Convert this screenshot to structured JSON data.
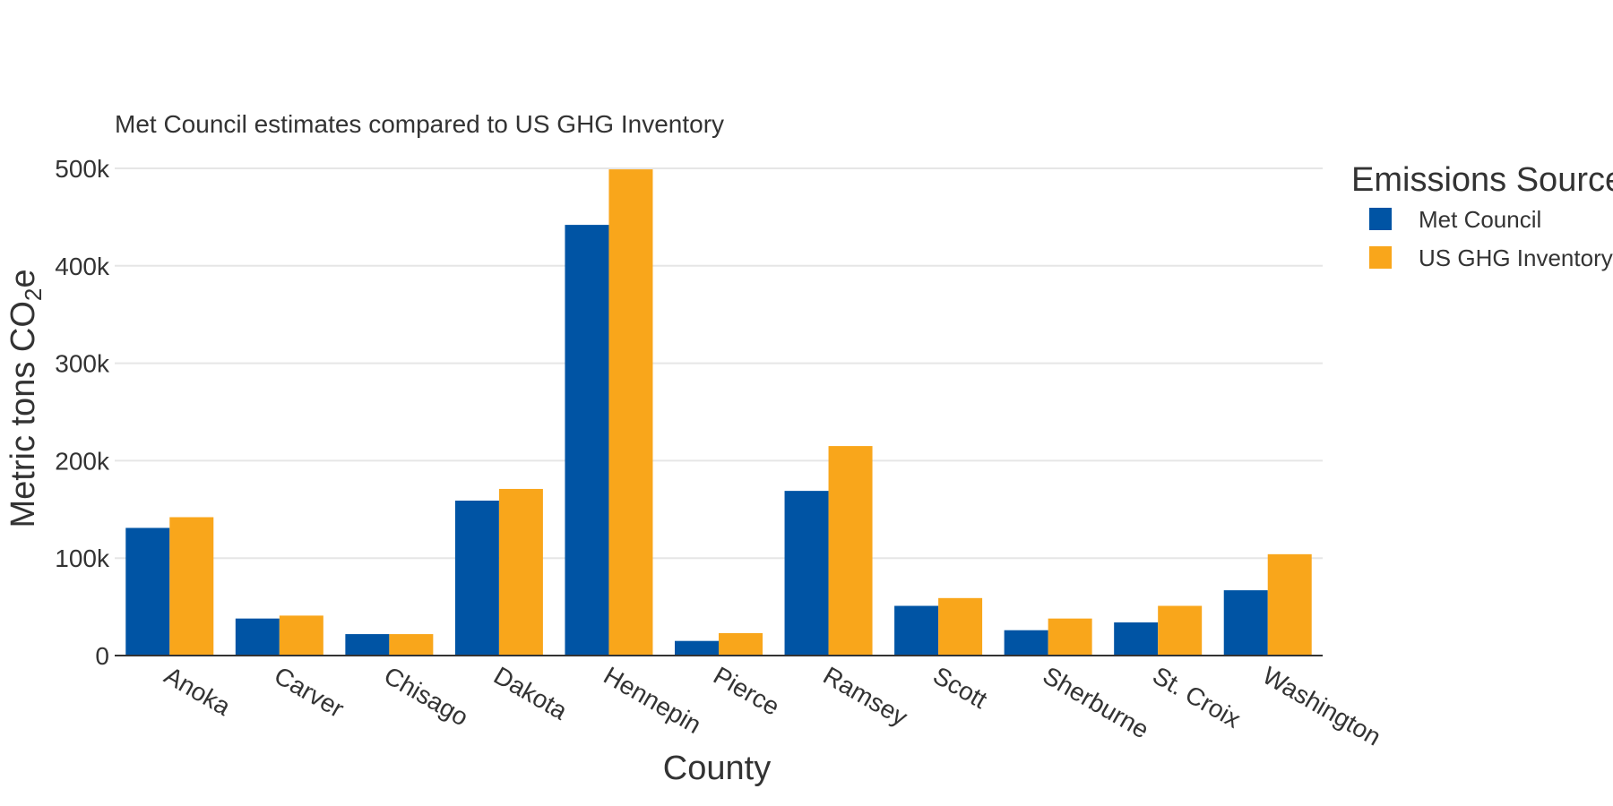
{
  "chart_data": {
    "type": "bar",
    "title": "Met Council estimates compared to US GHG Inventory",
    "xlabel": "County",
    "ylabel_main": "Metric tons CO",
    "ylabel_sub": "2",
    "ylabel_tail": "e",
    "ylim": [
      0,
      500000
    ],
    "yticks": [
      0,
      100000,
      200000,
      300000,
      400000,
      500000
    ],
    "ytick_labels": [
      "0",
      "100k",
      "200k",
      "300k",
      "400k",
      "500k"
    ],
    "grid": true,
    "categories": [
      "Anoka",
      "Carver",
      "Chisago",
      "Dakota",
      "Hennepin",
      "Pierce",
      "Ramsey",
      "Scott",
      "Sherburne",
      "St. Croix",
      "Washington"
    ],
    "legend": {
      "title": "Emissions Source",
      "placement": "right"
    },
    "series": [
      {
        "name": "Met Council",
        "color": "#0054A4",
        "values": [
          131000,
          38000,
          22000,
          159000,
          442000,
          15000,
          169000,
          51000,
          26000,
          34000,
          67000
        ]
      },
      {
        "name": "US GHG Inventory",
        "color": "#F9A61B",
        "values": [
          142000,
          41000,
          22000,
          171000,
          499000,
          23000,
          215000,
          59000,
          38000,
          51000,
          104000
        ]
      }
    ]
  }
}
